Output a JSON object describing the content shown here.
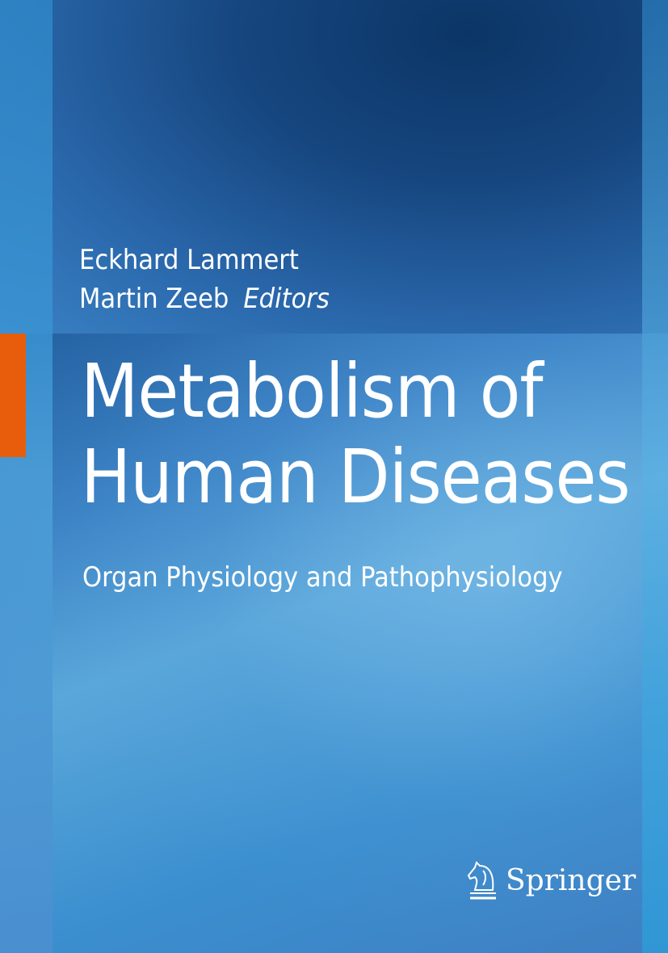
{
  "cover": {
    "editors": [
      "Eckhard Lammert",
      "Martin Zeeb"
    ],
    "editors_label": "Editors",
    "title_line1": "Metabolism of",
    "title_line2": "Human Diseases",
    "subtitle": "Organ Physiology and Pathophysiology",
    "publisher": "Springer",
    "publisher_icon": "chess-knight-horse-icon",
    "colors": {
      "accent": "#e85d0c",
      "background": "#3c83c6"
    }
  }
}
